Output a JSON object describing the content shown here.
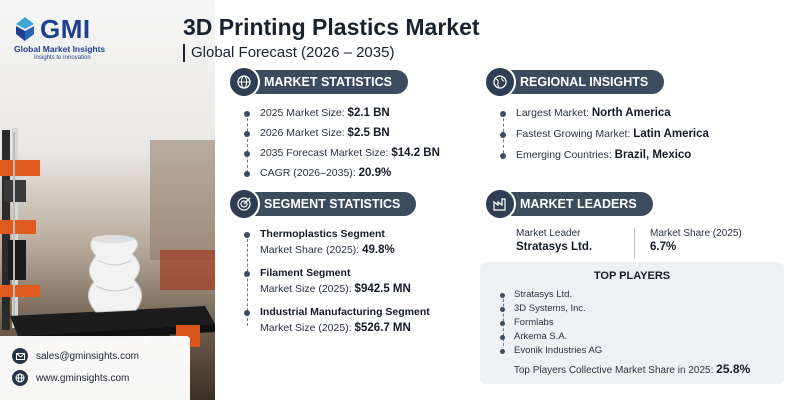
{
  "brand": {
    "logo_text": "GMI",
    "name": "Global Market Insights",
    "tagline": "Insights to Innovation"
  },
  "header": {
    "title": "3D Printing Plastics Market",
    "subtitle": "Global Forecast (2026 – 2035)"
  },
  "market_statistics": {
    "heading": "MARKET STATISTICS",
    "icon": "globe-chart-icon",
    "items": [
      {
        "label": "2025 Market Size: ",
        "value": "$2.1 BN"
      },
      {
        "label": "2026 Market Size: ",
        "value": "$2.5 BN"
      },
      {
        "label": "2035 Forecast Market Size: ",
        "value": "$14.2 BN"
      },
      {
        "label": "CAGR (2026–2035): ",
        "value": "20.9%"
      }
    ]
  },
  "regional_insights": {
    "heading": "REGIONAL INSIGHTS",
    "icon": "globe-icon",
    "items": [
      {
        "label": "Largest Market: ",
        "value": "North America"
      },
      {
        "label": "Fastest Growing Market: ",
        "value": "Latin America"
      },
      {
        "label": "Emerging Countries: ",
        "value": "Brazil, Mexico"
      }
    ]
  },
  "segment_statistics": {
    "heading": "SEGMENT STATISTICS",
    "icon": "target-icon",
    "items": [
      {
        "title": "Thermoplastics Segment",
        "label": "Market Share (2025): ",
        "value": "49.8%"
      },
      {
        "title": "Filament Segment",
        "label": "Market Size (2025): ",
        "value": "$942.5 MN"
      },
      {
        "title": "Industrial Manufacturing Segment",
        "label": "Market Size (2025): ",
        "value": "$526.7 MN"
      }
    ]
  },
  "market_leaders": {
    "heading": "MARKET LEADERS",
    "icon": "factory-icon",
    "leader_label": "Market Leader",
    "leader_value": "Stratasys Ltd.",
    "share_label": "Market Share (2025)",
    "share_value": "6.7%",
    "top_players_title": "TOP PLAYERS",
    "top_players": [
      "Stratasys Ltd.",
      "3D Systems, Inc.",
      "Formlabs",
      "Arkema S.A.",
      "Evonik Industries AG"
    ],
    "collective_label": "Top Players Collective Market Share in 2025: ",
    "collective_value": "25.8%"
  },
  "contact": {
    "email": "sales@gminsights.com",
    "website": "www.gminsights.com"
  },
  "colors": {
    "header_pill": "#3c4b5e",
    "icon_circle": "#2f3e52",
    "brand_blue": "#1f3f8f",
    "box_bg": "#eef0f3"
  }
}
